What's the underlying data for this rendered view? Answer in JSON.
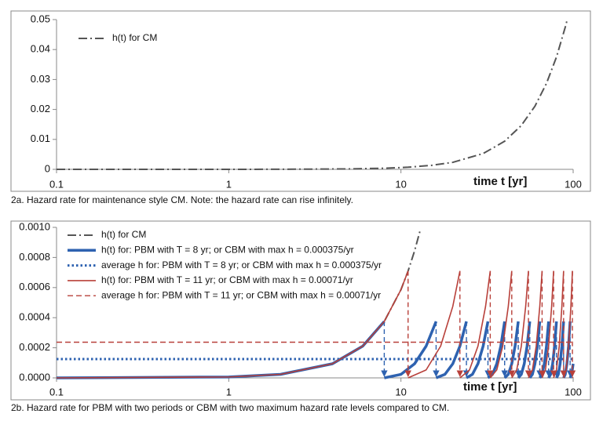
{
  "chart_data": [
    {
      "type": "line",
      "log_x": true,
      "x_label": "time t [yr]",
      "caption": "2a. Hazard rate for maintenance style CM. Note: the hazard rate can rise infinitely.",
      "xlim": [
        0.1,
        100
      ],
      "xticks": [
        0.1,
        1,
        10,
        100
      ],
      "ylim": [
        0,
        0.05
      ],
      "yticks": [
        0,
        0.01,
        0.02,
        0.03,
        0.04,
        0.05
      ],
      "grid": false,
      "legend": "upper left",
      "series": [
        {
          "name": "h(t) for CM",
          "color": "#555555",
          "dash": "dashdot",
          "width": 2,
          "x": [
            0.1,
            1,
            2,
            5,
            8,
            10,
            11,
            15,
            20,
            30,
            40,
            50,
            60,
            70,
            80,
            90,
            92
          ],
          "values": [
            6e-08,
            5.9e-06,
            2.34e-05,
            0.000147,
            0.000375,
            0.000586,
            0.00071,
            0.00132,
            0.00234,
            0.00527,
            0.00938,
            0.01465,
            0.0211,
            0.0287,
            0.0375,
            0.0475,
            0.0496
          ]
        }
      ]
    },
    {
      "type": "line",
      "log_x": true,
      "x_label": "time t [yr]",
      "caption": "2b. Hazard rate for PBM with two periods or CBM with two maximum hazard rate levels compared to CM.",
      "xlim": [
        0.1,
        100
      ],
      "xticks": [
        0.1,
        1,
        10,
        100
      ],
      "ylim": [
        0,
        0.001
      ],
      "yticks": [
        {
          "value": 0,
          "label": "0.0000"
        },
        {
          "value": 0.0002,
          "label": "0.0002"
        },
        {
          "value": 0.0004,
          "label": "0.0004"
        },
        {
          "value": 0.0006,
          "label": "0.0006"
        },
        {
          "value": 0.0008,
          "label": "0.0008"
        },
        {
          "value": 0.001,
          "label": "0.0010"
        }
      ],
      "grid": false,
      "legend": "upper left",
      "series": [
        {
          "name": "h(t) for CM",
          "color": "#555555",
          "dash": "dashdot",
          "width": 2,
          "x": [
            0.1,
            1,
            2,
            4,
            6,
            8,
            10,
            11,
            12,
            13
          ],
          "values": [
            6e-08,
            5.9e-06,
            2.34e-05,
            9.38e-05,
            0.000211,
            0.000375,
            0.000586,
            0.00071,
            0.000844,
            0.00099
          ]
        },
        {
          "name": "h(t) for: PBM with T = 8 yr; or CBM with max h = 0.000375/yr",
          "color": "#2e62b0",
          "dash": "solid",
          "width": 3.5,
          "x": [
            0.1,
            1,
            2,
            4,
            6,
            8,
            null,
            8,
            10,
            12,
            14,
            16,
            null,
            16,
            18,
            20,
            22,
            24,
            null,
            24,
            26,
            28,
            30,
            32,
            null,
            32,
            34,
            36,
            38,
            40,
            null,
            40,
            42,
            44,
            46,
            48,
            null,
            48,
            50,
            52,
            54,
            56,
            null,
            56,
            58,
            60,
            62,
            64,
            null,
            64,
            66,
            68,
            70,
            72,
            null,
            72,
            74,
            76,
            78,
            80,
            null,
            80,
            82,
            84,
            86,
            88,
            null,
            88,
            90,
            92,
            94,
            96,
            null,
            96,
            98,
            100
          ],
          "values": [
            6e-08,
            5.9e-06,
            2.34e-05,
            9.38e-05,
            0.000211,
            0.000375,
            null,
            0,
            2.34e-05,
            9.38e-05,
            0.000211,
            0.000375,
            null,
            0,
            2.34e-05,
            9.38e-05,
            0.000211,
            0.000375,
            null,
            0,
            2.34e-05,
            9.38e-05,
            0.000211,
            0.000375,
            null,
            0,
            2.34e-05,
            9.38e-05,
            0.000211,
            0.000375,
            null,
            0,
            2.34e-05,
            9.38e-05,
            0.000211,
            0.000375,
            null,
            0,
            2.34e-05,
            9.38e-05,
            0.000211,
            0.000375,
            null,
            0,
            2.34e-05,
            9.38e-05,
            0.000211,
            0.000375,
            null,
            0,
            2.34e-05,
            9.38e-05,
            0.000211,
            0.000375,
            null,
            0,
            2.34e-05,
            9.38e-05,
            0.000211,
            0.000375,
            null,
            0,
            2.34e-05,
            9.38e-05,
            0.000211,
            0.000375,
            null,
            0,
            2.34e-05,
            9.38e-05,
            0.000211,
            0.000375,
            null,
            0,
            2.34e-05,
            9.38e-05
          ]
        },
        {
          "name": "average h for: PBM with T = 8 yr; or CBM with max h = 0.000375/yr",
          "color": "#2e62b0",
          "dash": "dotted",
          "width": 3,
          "x": [
            0.1,
            100
          ],
          "values": [
            0.000125,
            0.000125
          ]
        },
        {
          "name": "h(t) for: PBM with T = 11 yr; or CBM with max h = 0.00071/yr",
          "color": "#b8403a",
          "dash": "solid",
          "width": 1.6,
          "x": [
            0.1,
            1,
            2,
            4,
            6,
            8,
            10,
            11,
            null,
            11,
            14,
            17,
            20,
            22,
            null,
            22,
            25,
            28,
            31,
            33,
            null,
            33,
            36,
            39,
            42,
            44,
            null,
            44,
            47,
            50,
            53,
            55,
            null,
            55,
            58,
            61,
            64,
            66,
            null,
            66,
            69,
            72,
            75,
            77,
            null,
            77,
            80,
            83,
            86,
            88,
            null,
            88,
            91,
            94,
            97,
            99,
            null,
            99,
            100
          ],
          "values": [
            6e-08,
            5.9e-06,
            2.34e-05,
            9.38e-05,
            0.000211,
            0.000375,
            0.000586,
            0.00071,
            null,
            0,
            5.27e-05,
            0.000211,
            0.000475,
            0.00071,
            null,
            0,
            5.27e-05,
            0.000211,
            0.000475,
            0.00071,
            null,
            0,
            5.27e-05,
            0.000211,
            0.000475,
            0.00071,
            null,
            0,
            5.27e-05,
            0.000211,
            0.000475,
            0.00071,
            null,
            0,
            5.27e-05,
            0.000211,
            0.000475,
            0.00071,
            null,
            0,
            5.27e-05,
            0.000211,
            0.000475,
            0.00071,
            null,
            0,
            5.27e-05,
            0.000211,
            0.000475,
            0.00071,
            null,
            0,
            5.27e-05,
            0.000211,
            0.000475,
            0.00071,
            null,
            0,
            5.9e-06
          ]
        },
        {
          "name": "average h for: PBM with T = 11 yr; or CBM with max h = 0.00071/yr",
          "color": "#b8403a",
          "dash": "dashed",
          "width": 1.4,
          "x": [
            0.1,
            100
          ],
          "values": [
            0.000237,
            0.000237
          ]
        }
      ]
    }
  ]
}
